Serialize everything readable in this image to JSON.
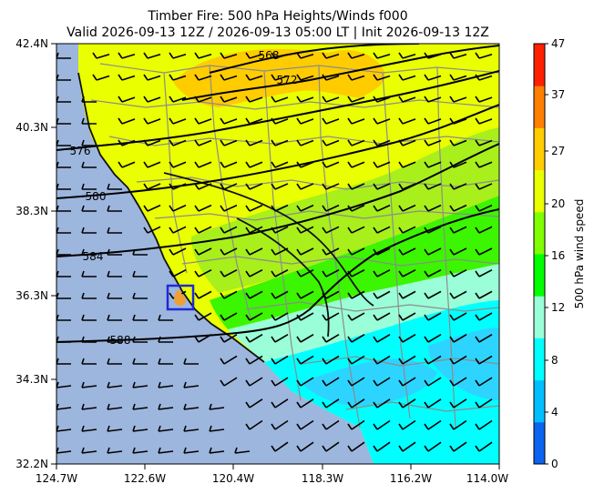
{
  "title_line1": "Timber Fire: 500 hPa Heights/Winds f000",
  "title_line2": "Valid 2026-09-13 12Z / 2026-09-13 05:00 LT | Init 2026-09-13 12Z",
  "map": {
    "lat_ticks": [
      "42.4N",
      "40.3N",
      "38.3N",
      "36.3N",
      "34.3N",
      "32.2N"
    ],
    "lon_ticks": [
      "124.7W",
      "122.6W",
      "120.4W",
      "118.3W",
      "116.2W",
      "114.0W"
    ],
    "contour_labels": [
      "568",
      "572",
      "576",
      "580",
      "584",
      "588"
    ],
    "ocean_color": "#9db6de",
    "fire_box_color": "#1f2ad6",
    "fire_marker_color": "#f0a030"
  },
  "colorbar": {
    "label": "500 hPa wind speed",
    "ticks": [
      "0",
      "4",
      "8",
      "12",
      "16",
      "20",
      "27",
      "37",
      "47"
    ],
    "colors": [
      "#0a64f0",
      "#00bfff",
      "#00ffff",
      "#9affd8",
      "#00ff00",
      "#7fff00",
      "#eaff00",
      "#ffcc00",
      "#ff8000",
      "#ff2000"
    ]
  }
}
